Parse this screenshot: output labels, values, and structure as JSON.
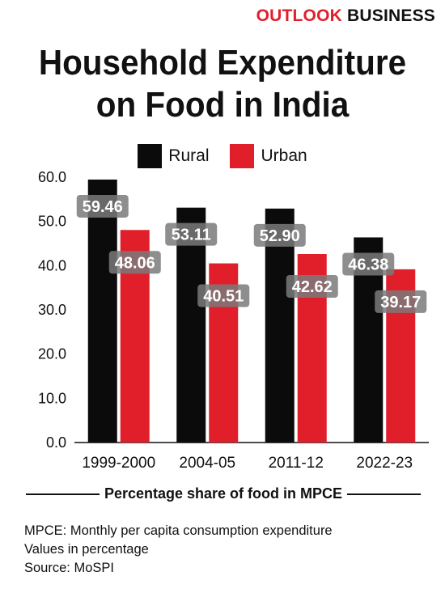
{
  "brand": {
    "part1": "OUTLOOK",
    "part2": "BUSINESS"
  },
  "title": {
    "line1": "Household Expenditure",
    "line2": "on Food in India"
  },
  "caption": "Percentage share of food in MPCE",
  "notes": {
    "line1": "MPCE: Monthly per capita consumption expenditure",
    "line2": "Values in percentage",
    "line3": "Source: MoSPI"
  },
  "colors": {
    "rural": "#0b0b0b",
    "urban": "#e11f2a",
    "label_bg": "#7a7a7a"
  },
  "chart_data": {
    "type": "bar",
    "title": "Household Expenditure on Food in India",
    "xlabel": "Percentage share of food in MPCE",
    "ylabel": "",
    "categories": [
      "1999-2000",
      "2004-05",
      "2011-12",
      "2022-23"
    ],
    "series": [
      {
        "name": "Rural",
        "values": [
          59.46,
          53.11,
          52.9,
          46.38
        ],
        "labels": [
          "59.46",
          "53.11",
          "52.90",
          "46.38"
        ]
      },
      {
        "name": "Urban",
        "values": [
          48.06,
          40.51,
          42.62,
          39.17
        ],
        "labels": [
          "48.06",
          "40.51",
          "42.62",
          "39.17"
        ]
      }
    ],
    "ylim": [
      0,
      60
    ],
    "yticks": [
      "0.0",
      "10.0",
      "20.0",
      "30.0",
      "40.0",
      "50.0",
      "60.0"
    ],
    "legend": "top-center",
    "grid": false
  }
}
